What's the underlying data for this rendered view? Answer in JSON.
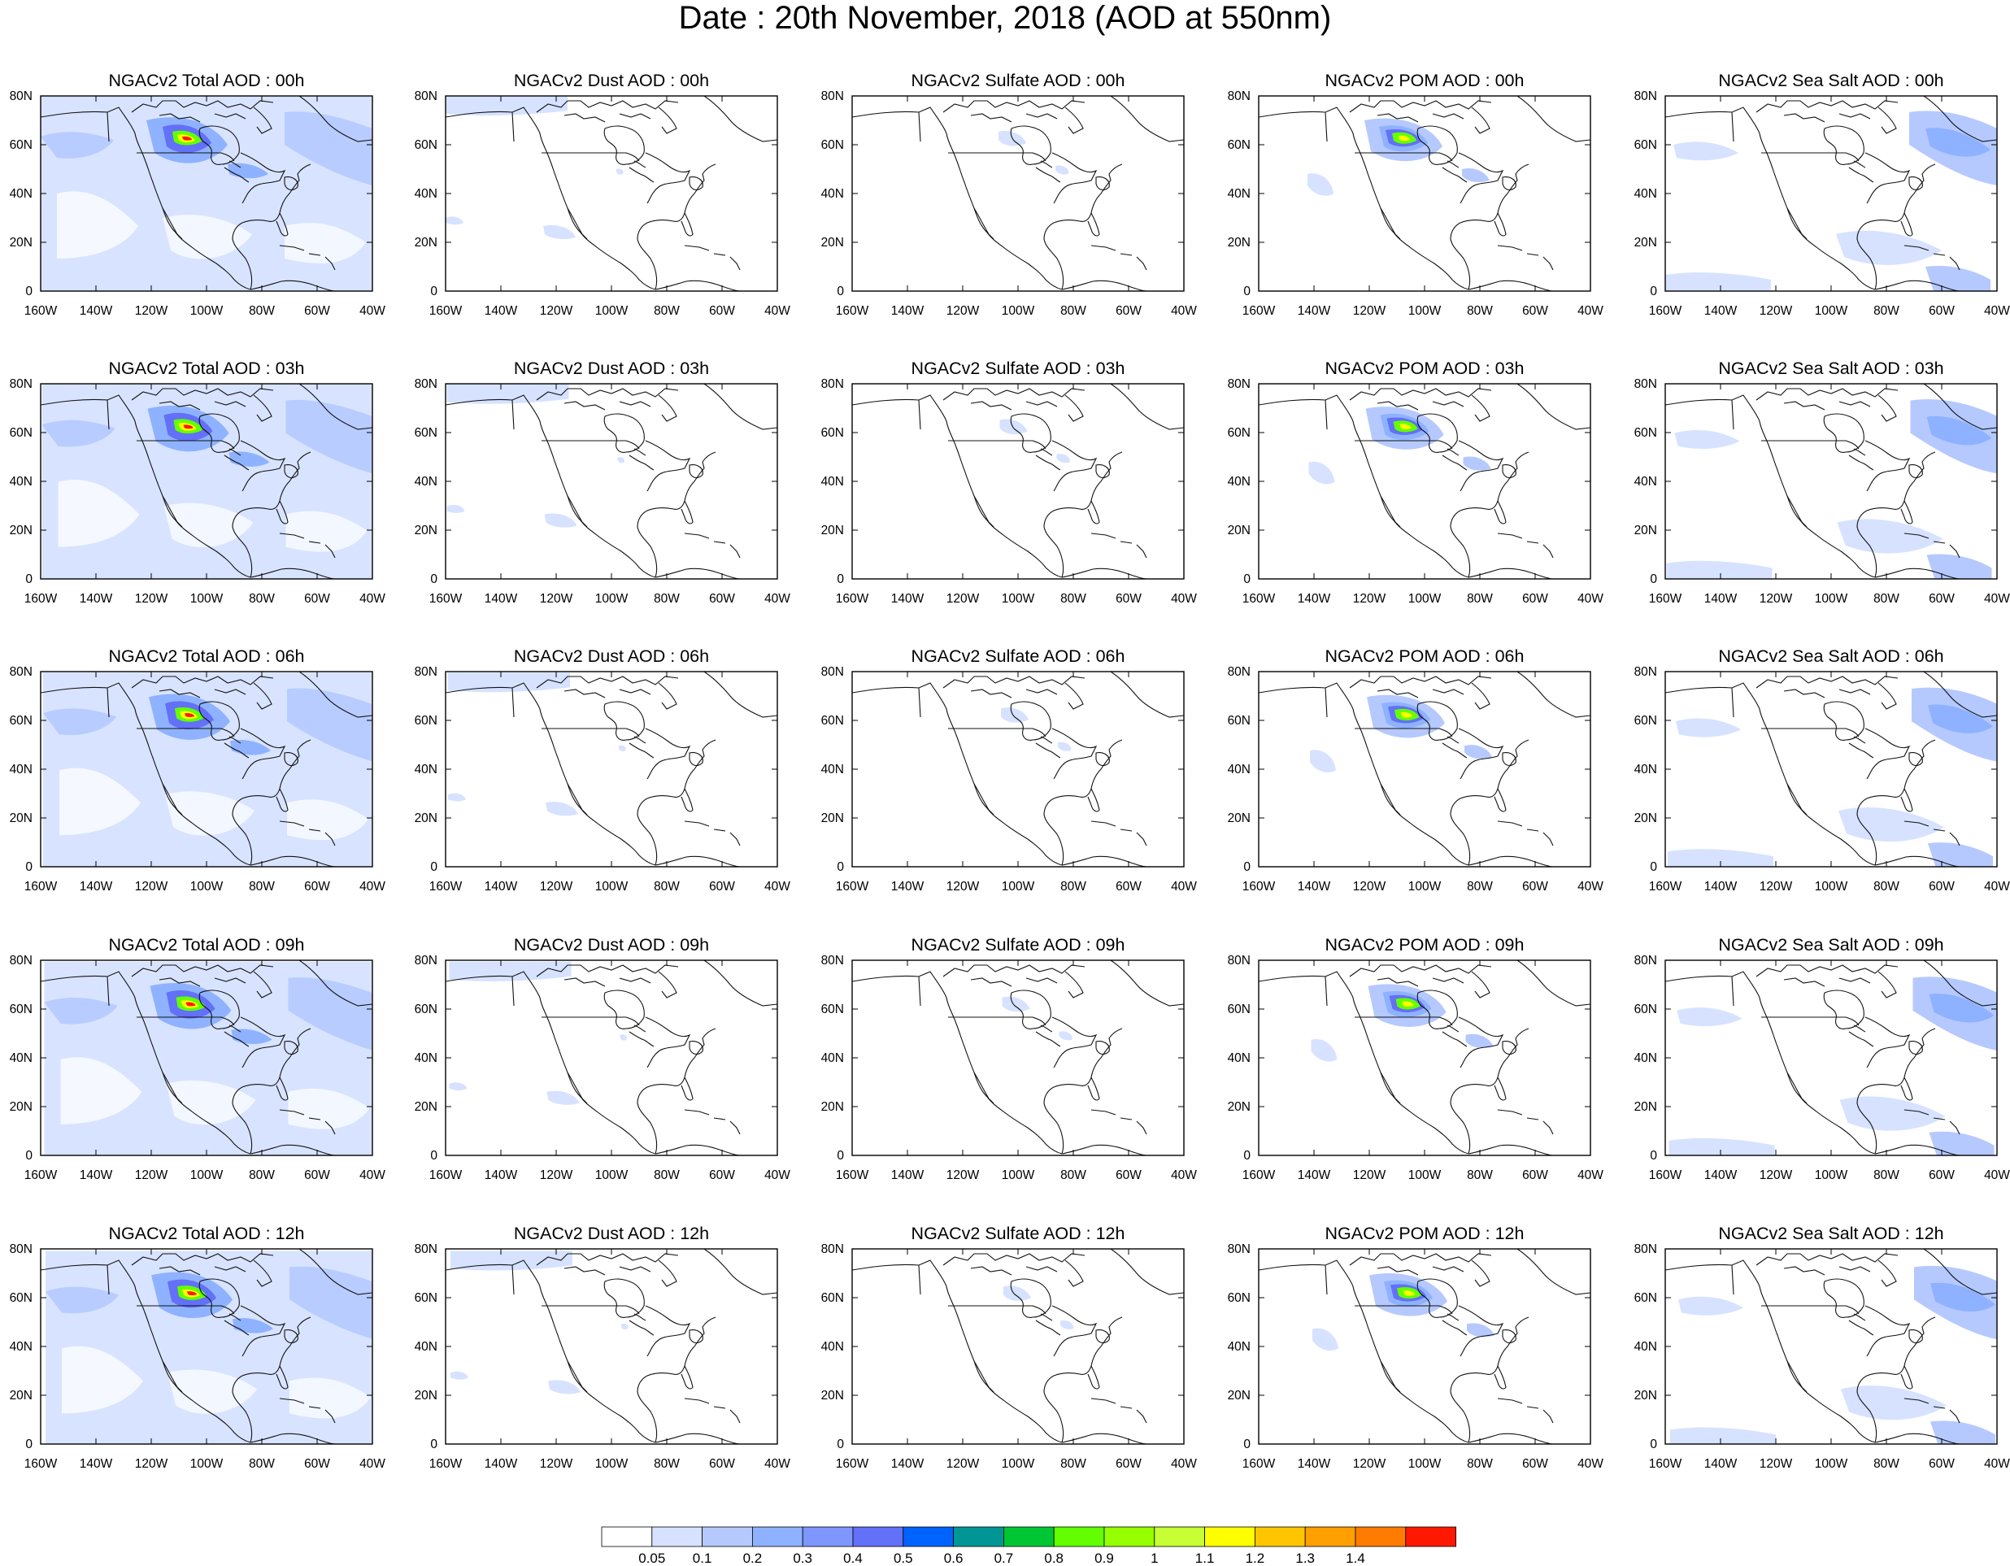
{
  "title": "Date : 20th November, 2018 (AOD at 550nm)",
  "species": [
    {
      "name": "total",
      "style": "total"
    },
    {
      "name": "dust",
      "style": "dust"
    },
    {
      "name": "sulfate",
      "style": "sulfate"
    },
    {
      "name": "pom",
      "style": "pom"
    },
    {
      "name": "seasalt",
      "style": "seasalt"
    }
  ],
  "times": [
    "00h",
    "03h",
    "06h",
    "09h",
    "12h"
  ],
  "panel_titles": [
    [
      "NGACv2 Total AOD : 00h",
      "NGACv2 Dust AOD : 00h",
      "NGACv2 Sulfate AOD : 00h",
      "NGACv2 POM AOD : 00h",
      "NGACv2 Sea Salt AOD : 00h"
    ],
    [
      "NGACv2 Total AOD : 03h",
      "NGACv2 Dust AOD : 03h",
      "NGACv2 Sulfate AOD : 03h",
      "NGACv2 POM AOD : 03h",
      "NGACv2 Sea Salt AOD : 03h"
    ],
    [
      "NGACv2 Total AOD : 06h",
      "NGACv2 Dust AOD : 06h",
      "NGACv2 Sulfate AOD : 06h",
      "NGACv2 POM AOD : 06h",
      "NGACv2 Sea Salt AOD : 06h"
    ],
    [
      "NGACv2 Total AOD : 09h",
      "NGACv2 Dust AOD : 09h",
      "NGACv2 Sulfate AOD : 09h",
      "NGACv2 POM AOD : 09h",
      "NGACv2 Sea Salt  AOD : 09h"
    ],
    [
      "NGACv2 Total AOD  : 12h",
      "NGACv2 Dust AOD : 12h",
      "NGACv2 Sulfate AOD : 12h",
      "NGACv2 POM  AOD : 12h",
      "NGACv2 Sea Salt  AOD : 12h"
    ]
  ],
  "axes": {
    "lon_range": [
      -160,
      -40
    ],
    "lat_range": [
      0,
      80
    ],
    "x_ticks": [
      -160,
      -140,
      -120,
      -100,
      -80,
      -60,
      -40
    ],
    "x_tick_labels": [
      "160W",
      "140W",
      "120W",
      "100W",
      "80W",
      "60W",
      "40W"
    ],
    "y_ticks": [
      0,
      20,
      40,
      60,
      80
    ],
    "y_tick_labels": [
      "0",
      "20N",
      "40N",
      "60N",
      "80N"
    ]
  },
  "colorbar": {
    "labels": [
      "0.05",
      "0.1",
      "0.2",
      "0.3",
      "0.4",
      "0.5",
      "0.6",
      "0.7",
      "0.8",
      "0.9",
      "1",
      "1.1",
      "1.2",
      "1.3",
      "1.4"
    ],
    "colors": [
      "#ffffff",
      "#d6e2ff",
      "#b5c9ff",
      "#8eb2ff",
      "#7f96ff",
      "#6370f8",
      "#0063ff",
      "#009696",
      "#00c633",
      "#63ff00",
      "#96ff00",
      "#c6ff33",
      "#ffff00",
      "#ffc600",
      "#ffa000",
      "#ff7c00",
      "#ff1900"
    ]
  },
  "colors": {
    "coast": "#111111",
    "frame": "#000000",
    "aod_light": "#d6e2ff",
    "aod_mid": "#b5c9ff",
    "aod_blue": "#8eb2ff",
    "aod_dark": "#6370f8",
    "aod_green": "#63ff00",
    "aod_yellow": "#ffff00",
    "aod_orange": "#ffa000",
    "aod_red": "#ff1900"
  }
}
